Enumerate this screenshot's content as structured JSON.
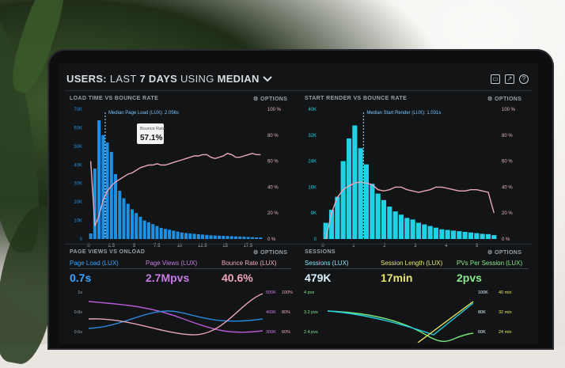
{
  "header": {
    "prefix": "USERS:",
    "last": "LAST",
    "days": "7 DAYS",
    "using": "USING",
    "median": "MEDIAN",
    "chevron": "chevron-down-icon"
  },
  "header_icons": [
    "monitor-icon",
    "share-icon",
    "help-icon"
  ],
  "options_label": "OPTIONS",
  "panels": {
    "load_bounce": {
      "title": "LOAD TIME VS BOUNCE RATE",
      "median_label": "Median Page Load (LUX): 2.056s",
      "tooltip_label": "Bounce Rate",
      "tooltip_value": "57.1%",
      "legend_a": "Page Load (LUX)",
      "legend_b": "Bounce Rate"
    },
    "start_bounce": {
      "title": "START RENDER VS BOUNCE RATE",
      "median_label": "Median Start Render (LUX): 1.031s",
      "legend_a": "Start Render (LUX)",
      "legend_b": "Bounce Rate"
    },
    "pageviews": {
      "title": "PAGE VIEWS VS ONLOAD",
      "m1_label": "Page Load (LUX)",
      "m1_value": "0.7s",
      "m2_label": "Page Views (LUX)",
      "m2_value": "2.7Mpvs",
      "m3_label": "Bounce Rate (LUX)",
      "m3_value": "40.6%"
    },
    "sessions": {
      "title": "SESSIONS",
      "m1_label": "Sessions (LUX)",
      "m1_value": "479K",
      "m2_label": "Session Length (LUX)",
      "m2_value": "17min",
      "m3_label": "PVs Per Session (LUX)",
      "m3_value": "2pvs"
    }
  },
  "colors": {
    "blue": "#1e8fe0",
    "cyan": "#1fd0e6",
    "pink": "#e7a3b8",
    "purple": "#b45ad2",
    "green": "#7be67a",
    "yellow": "#e5e45a"
  },
  "chart_data": [
    {
      "type": "bar",
      "name": "LOAD TIME VS BOUNCE RATE",
      "x_ticks": [
        "0",
        "2.5",
        "5",
        "7.5",
        "10",
        "12.5",
        "15",
        "17.5"
      ],
      "y_left_ticks": [
        "0",
        "10K",
        "20K",
        "30K",
        "40K",
        "50K",
        "60K",
        "70K"
      ],
      "y_right_ticks": [
        "0 %",
        "20 %",
        "40 %",
        "60 %",
        "80 %",
        "100 %"
      ],
      "ylim_left": [
        0,
        70000
      ],
      "ylim_right": [
        0,
        100
      ],
      "series": [
        {
          "name": "Page Load (LUX)",
          "values": [
            3000,
            38000,
            64000,
            56000,
            52000,
            47000,
            35000,
            26000,
            22000,
            19000,
            16000,
            14000,
            12000,
            10000,
            9000,
            8000,
            7000,
            6000,
            5500,
            5000,
            4500,
            4000,
            3500,
            3200,
            3000,
            2800,
            2600,
            2400,
            2200,
            2000,
            1900,
            1800,
            1700,
            1600,
            1500,
            1400,
            1300,
            1200,
            1100,
            1000,
            900,
            800
          ]
        },
        {
          "name": "Bounce Rate",
          "values": [
            60,
            10,
            18,
            30,
            37,
            41,
            44,
            46,
            48,
            50,
            51,
            53,
            55,
            56,
            57,
            57,
            58,
            57,
            57,
            58,
            59,
            60,
            61,
            62,
            63,
            64,
            64,
            65,
            65,
            63,
            62,
            63,
            64,
            66,
            65,
            63,
            63,
            64,
            65,
            66,
            65,
            65
          ]
        }
      ]
    },
    {
      "type": "bar",
      "name": "START RENDER VS BOUNCE RATE",
      "x_ticks": [
        "0",
        "1",
        "2",
        "3",
        "4",
        "5"
      ],
      "y_left_ticks": [
        "0",
        "8K",
        "16K",
        "24K",
        "32K",
        "40K"
      ],
      "y_right_ticks": [
        "0 %",
        "20 %",
        "40 %",
        "60 %",
        "80 %",
        "100 %"
      ],
      "ylim_left": [
        0,
        40000
      ],
      "ylim_right": [
        0,
        100
      ],
      "series": [
        {
          "name": "Start Render (LUX)",
          "values": [
            5000,
            9000,
            13000,
            24000,
            31000,
            35000,
            28000,
            23000,
            17000,
            14000,
            12000,
            10000,
            8500,
            7500,
            6500,
            6000,
            5000,
            4500,
            4000,
            3500,
            3000,
            2800,
            2600,
            2400,
            2200,
            2000,
            1800,
            1600,
            1500,
            1200
          ]
        },
        {
          "name": "Bounce Rate",
          "values": [
            0,
            20,
            32,
            38,
            41,
            43,
            44,
            43,
            42,
            38,
            37,
            38,
            40,
            40,
            38,
            37,
            36,
            37,
            38,
            40,
            40,
            39,
            38,
            37,
            37,
            38,
            38,
            37,
            36,
            20
          ]
        }
      ]
    }
  ],
  "bottom_axes": {
    "pv_ticks": [
      "1s",
      "0.8s",
      "0.6s"
    ],
    "pv_right_a": [
      "500K",
      "400K",
      "300K"
    ],
    "pv_right_b": [
      "100%",
      "80%",
      "60%"
    ],
    "s_left": [
      "4 pvs",
      "3.2 pvs",
      "2.4 pvs"
    ],
    "s_right_a": [
      "100K",
      "80K",
      "60K"
    ],
    "s_right_b": [
      "40 min",
      "32 min",
      "24 min"
    ]
  }
}
